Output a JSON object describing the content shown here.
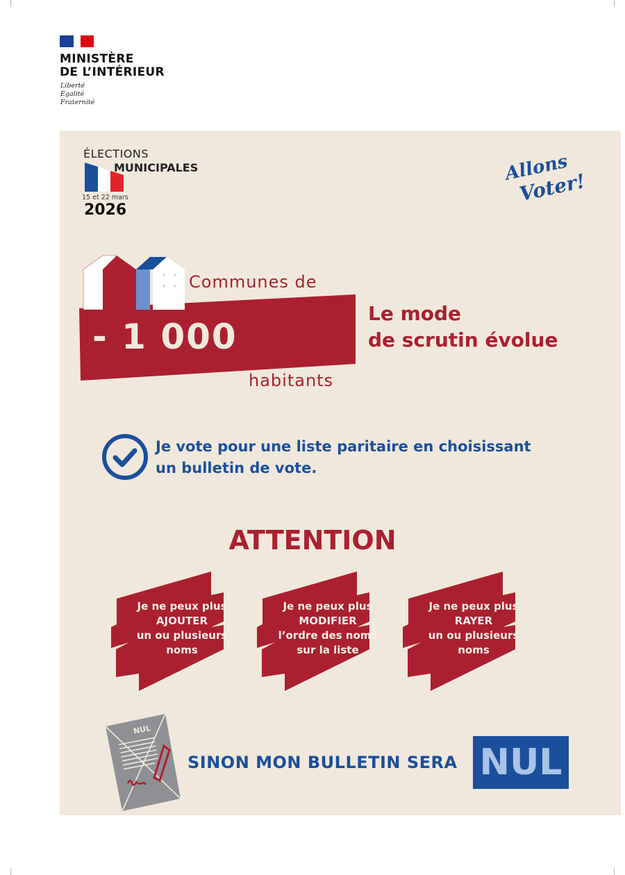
{
  "header": {
    "ministry_line1": "MINISTÈRE",
    "ministry_line2": "DE L’INTÉRIEUR",
    "motto": [
      "Liberté",
      "Égalité",
      "Fraternité"
    ]
  },
  "elections": {
    "line1": "ÉLECTIONS",
    "line2": "MUNICIPALES",
    "dates": "15 et 22 mars",
    "year": "2026"
  },
  "slogan": "Allons Voter!",
  "communes": {
    "top": "Communes de",
    "number": "- 1 000",
    "bottom": "habitants"
  },
  "headline": {
    "line1": "Le mode",
    "line2": "de scrutin évolue"
  },
  "vote": {
    "line1": "Je vote pour une liste paritaire en choisissant",
    "line2": "un bulletin de vote."
  },
  "attention": "ATTENTION",
  "banners": [
    {
      "lines": [
        "Je ne peux plus",
        "AJOUTER",
        "un ou plusieurs",
        "noms"
      ]
    },
    {
      "lines": [
        "Je ne peux plus",
        "MODIFIER",
        "l’ordre des noms",
        "sur la liste"
      ]
    },
    {
      "lines": [
        "Je ne peux plus",
        "RAYER",
        "un ou plusieurs",
        "noms"
      ]
    }
  ],
  "ballot_label": "NUL",
  "footer": {
    "text": "SINON MON BULLETIN SERA",
    "nul": "NUL"
  },
  "colors": {
    "background": "#f0e8dc",
    "red": "#ab2030",
    "blue": "#1b4f9c",
    "light_blue": "#a9c4e8"
  }
}
